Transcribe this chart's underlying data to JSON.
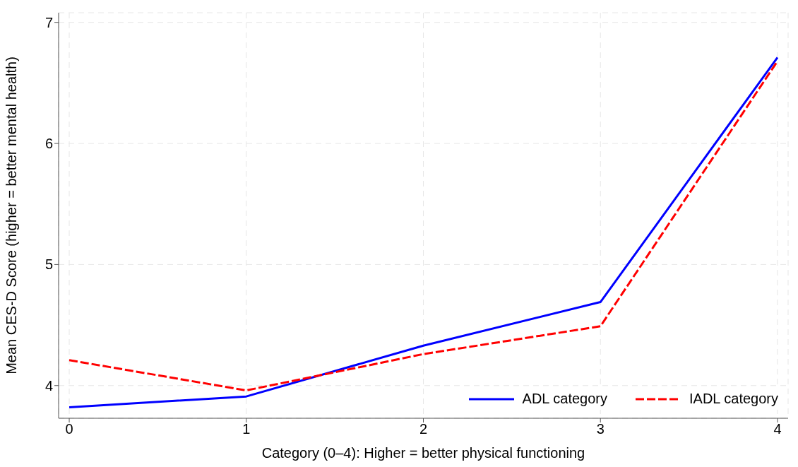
{
  "chart_data": {
    "type": "line",
    "xlabel": "Category (0–4): Higher = better physical functioning",
    "ylabel": "Mean CES-D Score (higher = better mental health)",
    "x": [
      0,
      1,
      2,
      3,
      4
    ],
    "series": [
      {
        "name": "ADL category",
        "color": "#0000ff",
        "line_style": "solid",
        "values": [
          3.82,
          3.91,
          4.33,
          4.69,
          6.71
        ]
      },
      {
        "name": "IADL category",
        "color": "#ff0000",
        "line_style": "dashed",
        "values": [
          4.21,
          3.96,
          4.26,
          4.49,
          6.68
        ]
      }
    ],
    "xlim": [
      -0.06,
      4.06
    ],
    "xticks": [
      0,
      1,
      2,
      3,
      4
    ],
    "ylim": [
      3.73,
      7.08
    ],
    "yticks": [
      4,
      5,
      6,
      7
    ],
    "grid": true,
    "legend": "bottom right",
    "marker": "none"
  }
}
